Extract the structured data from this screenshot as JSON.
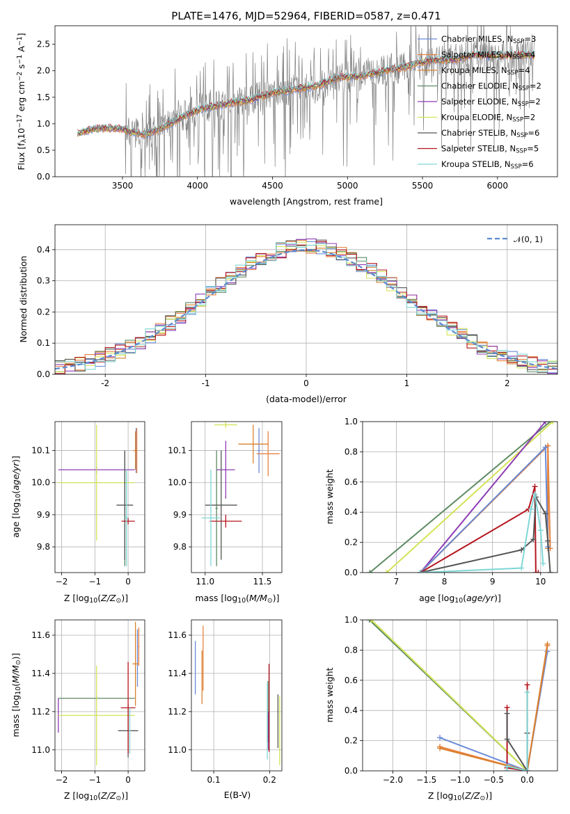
{
  "colors": {
    "Chabrier MILES": "#6a8ad8",
    "Salpeter MILES": "#e9813f",
    "Kroupa MILES": "#d9802f",
    "Chabrier ELODIE": "#5e8a63",
    "Salpeter ELODIE": "#8e3bb5",
    "Kroupa ELODIE": "#d4e357",
    "Chabrier STELIB": "#555555",
    "Salpeter STELIB": "#b5141d",
    "Kroupa STELIB": "#7fd6d6",
    "normal": "#5b8bd0",
    "data": "#808080"
  },
  "chart_data": [
    {
      "id": "spectrum",
      "type": "line",
      "title": "PLATE=1476, MJD=52964, FIBERID=0587, z=0.471",
      "xlabel": "wavelength [Angstrom, rest frame]",
      "ylabel": "Flux [f_λ 10^-17 erg cm^-2 s^-1 A^-1]",
      "xlim": [
        3050,
        6400
      ],
      "ylim": [
        0,
        2.85
      ],
      "xticks": [
        3500,
        4000,
        4500,
        5000,
        5500,
        6000
      ],
      "yticks": [
        0.0,
        0.5,
        1.0,
        1.5,
        2.0,
        2.5
      ],
      "legend_position": "top-right",
      "grid": false,
      "continuum": {
        "x": [
          3200,
          3300,
          3400,
          3500,
          3550,
          3650,
          3750,
          3850,
          3950,
          4050,
          4200,
          4350,
          4500,
          4650,
          4800,
          4950,
          5100,
          5250,
          5400,
          5550,
          5700,
          5850,
          6000,
          6150,
          6250
        ],
        "y": [
          0.82,
          0.9,
          0.92,
          0.9,
          0.85,
          0.8,
          0.9,
          1.05,
          1.2,
          1.3,
          1.38,
          1.45,
          1.58,
          1.65,
          1.72,
          1.88,
          1.9,
          2.0,
          2.08,
          2.2,
          2.2,
          2.3,
          2.28,
          2.3,
          2.3
        ]
      },
      "legend": [
        {
          "model": "Chabrier MILES",
          "label": "Chabrier MILES, N",
          "sub": "SSP",
          "value": "=3"
        },
        {
          "model": "Salpeter MILES",
          "label": "Salpeter MILES, N",
          "sub": "SSP",
          "value": "=4"
        },
        {
          "model": "Kroupa MILES",
          "label": "Kroupa MILES, N",
          "sub": "SSP",
          "value": "=4"
        },
        {
          "model": "Chabrier ELODIE",
          "label": "Chabrier ELODIE, N",
          "sub": "SSP",
          "value": "=2"
        },
        {
          "model": "Salpeter ELODIE",
          "label": "Salpeter ELODIE, N",
          "sub": "SSP",
          "value": "=2"
        },
        {
          "model": "Kroupa ELODIE",
          "label": "Kroupa ELODIE, N",
          "sub": "SSP",
          "value": "=2"
        },
        {
          "model": "Chabrier STELIB",
          "label": "Chabrier STELIB, N",
          "sub": "SSP",
          "value": "=6"
        },
        {
          "model": "Salpeter STELIB",
          "label": "Salpeter STELIB, N",
          "sub": "SSP",
          "value": "=5"
        },
        {
          "model": "Kroupa STELIB",
          "label": "Kroupa STELIB, N",
          "sub": "SSP",
          "value": "=6"
        }
      ]
    },
    {
      "id": "residuals",
      "type": "line",
      "xlabel": "(data-model)/error",
      "ylabel": "Normed distribution",
      "xlim": [
        -2.5,
        2.5
      ],
      "ylim": [
        0,
        0.48
      ],
      "xticks": [
        -2,
        -1,
        0,
        1,
        2
      ],
      "yticks": [
        0.0,
        0.1,
        0.2,
        0.3,
        0.4
      ],
      "grid": true,
      "legend_position": "top-right",
      "normal_label": "𝒩(0, 1)",
      "bin_width": 0.1
    },
    {
      "id": "age-vs-Z",
      "type": "scatter",
      "xlabel": "Z [log10(Z/Z⊙)]",
      "ylabel": "age [log10(age/yr)]",
      "xlim": [
        -2.2,
        0.5
      ],
      "ylim": [
        9.72,
        10.19
      ],
      "xticks": [
        -2,
        -1,
        0
      ],
      "yticks": [
        9.8,
        9.9,
        10.0,
        10.1
      ],
      "grid": true,
      "points": [
        {
          "model": "Chabrier MILES",
          "x": 0.24,
          "xerr": 0.02,
          "y": 10.1,
          "yerr": 0.07
        },
        {
          "model": "Salpeter MILES",
          "x": 0.26,
          "xerr": 0.02,
          "y": 10.1,
          "yerr": 0.07
        },
        {
          "model": "Kroupa MILES",
          "x": 0.22,
          "xerr": 0.06,
          "y": 10.1,
          "yerr": 0.06
        },
        {
          "model": "Chabrier ELODIE",
          "x": -0.1,
          "xerr": 0.02,
          "y": 9.92,
          "yerr": 0.18
        },
        {
          "model": "Salpeter ELODIE",
          "x": -0.95,
          "xerr": 1.15,
          "y": 10.04,
          "yerr": 0.01
        },
        {
          "model": "Kroupa ELODIE",
          "x": -0.95,
          "xerr": 1.15,
          "y": 10.0,
          "yerr": 0.18
        },
        {
          "model": "Chabrier STELIB",
          "x": -0.1,
          "xerr": 0.25,
          "y": 9.93,
          "yerr": 0.17
        },
        {
          "model": "Salpeter STELIB",
          "x": 0.0,
          "xerr": 0.2,
          "y": 9.88,
          "yerr": 0.01
        },
        {
          "model": "Kroupa STELIB",
          "x": -0.05,
          "xerr": 0.05,
          "y": 9.89,
          "yerr": 0.15
        }
      ]
    },
    {
      "id": "age-vs-mass",
      "type": "scatter",
      "xlabel": "mass [log10(M/M⊙)]",
      "ylabel": "",
      "xlim": [
        10.88,
        11.67
      ],
      "ylim": [
        9.72,
        10.19
      ],
      "xticks": [
        11.0,
        11.5
      ],
      "yticks": [
        9.8,
        9.9,
        10.0,
        10.1
      ],
      "grid": true,
      "points": [
        {
          "model": "Chabrier MILES",
          "x": 11.47,
          "xerr": 0.01,
          "y": 10.1,
          "yerr": 0.07
        },
        {
          "model": "Salpeter MILES",
          "x": 11.55,
          "xerr": 0.1,
          "y": 10.09,
          "yerr": 0.07
        },
        {
          "model": "Kroupa MILES",
          "x": 11.42,
          "xerr": 0.13,
          "y": 10.12,
          "yerr": 0.06
        },
        {
          "model": "Chabrier ELODIE",
          "x": 11.1,
          "xerr": 0.01,
          "y": 9.92,
          "yerr": 0.18
        },
        {
          "model": "Salpeter ELODIE",
          "x": 11.18,
          "xerr": 0.08,
          "y": 10.04,
          "yerr": 0.09
        },
        {
          "model": "Kroupa ELODIE",
          "x": 11.18,
          "xerr": 0.1,
          "y": 10.18,
          "yerr": 0.01
        },
        {
          "model": "Chabrier STELIB",
          "x": 11.14,
          "xerr": 0.14,
          "y": 9.93,
          "yerr": 0.17
        },
        {
          "model": "Salpeter STELIB",
          "x": 11.18,
          "xerr": 0.14,
          "y": 9.88,
          "yerr": 0.02
        },
        {
          "model": "Kroupa STELIB",
          "x": 11.05,
          "xerr": 0.08,
          "y": 9.89,
          "yerr": 0.15
        }
      ]
    },
    {
      "id": "mass-weight-vs-age",
      "type": "line",
      "xlabel": "age [log10(age/yr)]",
      "ylabel": "mass weight",
      "xlim": [
        6.3,
        10.35
      ],
      "ylim": [
        0,
        1.0
      ],
      "xticks": [
        7,
        8,
        9,
        10
      ],
      "yticks": [
        0.0,
        0.2,
        0.4,
        0.6,
        0.8,
        1.0
      ],
      "grid": true,
      "series": [
        {
          "model": "Chabrier ELODIE",
          "x": [
            6.45,
            10.2
          ],
          "y": [
            0,
            1.0
          ]
        },
        {
          "model": "Kroupa ELODIE",
          "x": [
            6.8,
            10.25
          ],
          "y": [
            0,
            1.0
          ]
        },
        {
          "model": "Salpeter ELODIE",
          "x": [
            7.5,
            10.1
          ],
          "y": [
            0,
            1.0
          ]
        },
        {
          "model": "Kroupa MILES",
          "x": [
            7.5,
            10.15,
            10.15
          ],
          "y": [
            0,
            0.84,
            0.16
          ]
        },
        {
          "model": "Salpeter MILES",
          "x": [
            7.5,
            10.15,
            10.2
          ],
          "y": [
            0,
            0.84,
            0.16
          ]
        },
        {
          "model": "Chabrier MILES",
          "x": [
            7.5,
            10.1,
            10.15
          ],
          "y": [
            0,
            0.83,
            0.17
          ]
        },
        {
          "model": "Salpeter STELIB",
          "x": [
            7.5,
            9.75,
            9.88,
            9.9,
            9.95
          ],
          "y": [
            0,
            0.42,
            0.57,
            0.0,
            0.0
          ]
        },
        {
          "model": "Chabrier STELIB",
          "x": [
            7.5,
            9.6,
            9.85,
            9.9,
            10.1,
            10.15,
            10.2
          ],
          "y": [
            0,
            0.15,
            0.22,
            0.5,
            0.39,
            0.21,
            0.0
          ]
        },
        {
          "model": "Kroupa STELIB",
          "x": [
            7.5,
            9.6,
            9.8,
            9.88,
            10.0,
            10.05
          ],
          "y": [
            0.0,
            0.03,
            0.42,
            0.52,
            0.28,
            0.06
          ]
        }
      ]
    },
    {
      "id": "mass-vs-Z",
      "type": "scatter",
      "xlabel": "Z [log10(Z/Z⊙)]",
      "ylabel": "mass [log10(M/M⊙)]",
      "xlim": [
        -2.2,
        0.5
      ],
      "ylim": [
        10.89,
        11.68
      ],
      "xticks": [
        -2,
        -1,
        0
      ],
      "yticks": [
        11.0,
        11.2,
        11.4,
        11.6
      ],
      "grid": true,
      "points": [
        {
          "model": "Chabrier MILES",
          "x": 0.28,
          "xerr": 0.01,
          "y": 11.48,
          "yerr": 0.15
        },
        {
          "model": "Salpeter MILES",
          "x": 0.32,
          "xerr": 0.02,
          "y": 11.54,
          "yerr": 0.1
        },
        {
          "model": "Kroupa MILES",
          "x": 0.22,
          "xerr": 0.09,
          "y": 11.45,
          "yerr": 0.22
        },
        {
          "model": "Chabrier ELODIE",
          "x": -0.95,
          "xerr": 1.15,
          "y": 11.27,
          "yerr": 0.01
        },
        {
          "model": "Salpeter ELODIE",
          "x": -2.1,
          "xerr": 0.01,
          "y": 11.18,
          "yerr": 0.09
        },
        {
          "model": "Kroupa ELODIE",
          "x": -0.95,
          "xerr": 1.15,
          "y": 11.18,
          "yerr": 0.26
        },
        {
          "model": "Chabrier STELIB",
          "x": 0.0,
          "xerr": 0.3,
          "y": 11.1,
          "yerr": 0.14
        },
        {
          "model": "Salpeter STELIB",
          "x": 0.0,
          "xerr": 0.22,
          "y": 11.22,
          "yerr": 0.24
        },
        {
          "model": "Kroupa STELIB",
          "x": 0.05,
          "xerr": 0.02,
          "y": 11.1,
          "yerr": 0.12
        }
      ]
    },
    {
      "id": "mass-vs-ebv",
      "type": "scatter",
      "xlabel": "E(B-V)",
      "ylabel": "",
      "xlim": [
        0.06,
        0.222
      ],
      "ylim": [
        10.89,
        11.68
      ],
      "xticks": [
        0.1,
        0.2
      ],
      "yticks": [
        11.0,
        11.2,
        11.4,
        11.6
      ],
      "grid": true,
      "points": [
        {
          "model": "Chabrier MILES",
          "x": 0.067,
          "y": 11.43,
          "yerr": 0.14
        },
        {
          "model": "Salpeter MILES",
          "x": 0.081,
          "y": 11.48,
          "yerr": 0.17
        },
        {
          "model": "Kroupa MILES",
          "x": 0.079,
          "y": 11.38,
          "yerr": 0.14
        },
        {
          "model": "Chabrier ELODIE",
          "x": 0.197,
          "y": 11.2,
          "yerr": 0.16
        },
        {
          "model": "Salpeter ELODIE",
          "x": 0.198,
          "y": 11.1,
          "yerr": 0.1
        },
        {
          "model": "Kroupa ELODIE",
          "x": 0.218,
          "y": 11.1,
          "yerr": 0.18
        },
        {
          "model": "Chabrier STELIB",
          "x": 0.215,
          "y": 11.15,
          "yerr": 0.14
        },
        {
          "model": "Salpeter STELIB",
          "x": 0.199,
          "y": 11.22,
          "yerr": 0.23
        },
        {
          "model": "Kroupa STELIB",
          "x": 0.196,
          "y": 11.15,
          "yerr": 0.2
        }
      ]
    },
    {
      "id": "mass-weight-vs-Z",
      "type": "line",
      "xlabel": "Z [log10(Z/Z⊙)]",
      "ylabel": "mass weight",
      "xlim": [
        -2.45,
        0.45
      ],
      "ylim": [
        0,
        1.0
      ],
      "xticks": [
        -2.0,
        -1.5,
        -1.0,
        -0.5,
        0.0
      ],
      "yticks": [
        0.0,
        0.2,
        0.4,
        0.6,
        0.8,
        1.0
      ],
      "grid": true,
      "series": [
        {
          "model": "Chabrier ELODIE",
          "x": [
            -2.35,
            0.0
          ],
          "y": [
            1.0,
            0.0
          ]
        },
        {
          "model": "Kroupa ELODIE",
          "x": [
            -2.32,
            0.0
          ],
          "y": [
            1.0,
            0.0
          ]
        },
        {
          "model": "Chabrier MILES",
          "x": [
            -1.3,
            0.0,
            0.3
          ],
          "y": [
            0.22,
            0.0,
            0.79
          ]
        },
        {
          "model": "Salpeter MILES",
          "x": [
            -1.3,
            0.0,
            0.3
          ],
          "y": [
            0.16,
            0.0,
            0.83
          ]
        },
        {
          "model": "Kroupa MILES",
          "x": [
            -1.3,
            0.0,
            0.3
          ],
          "y": [
            0.15,
            0.0,
            0.84
          ]
        },
        {
          "model": "Salpeter STELIB",
          "x": [
            -0.3,
            -0.3,
            0.0,
            0.0
          ],
          "y": [
            0.42,
            0.02,
            0.0,
            0.57
          ]
        },
        {
          "model": "Chabrier STELIB",
          "x": [
            -0.3,
            -0.3,
            0.0,
            0.0
          ],
          "y": [
            0.38,
            0.21,
            0.0,
            0.25
          ]
        },
        {
          "model": "Kroupa STELIB",
          "x": [
            -0.3,
            -0.3,
            0.0,
            0.0
          ],
          "y": [
            0.0,
            0.03,
            0.0,
            0.52
          ]
        }
      ]
    }
  ]
}
